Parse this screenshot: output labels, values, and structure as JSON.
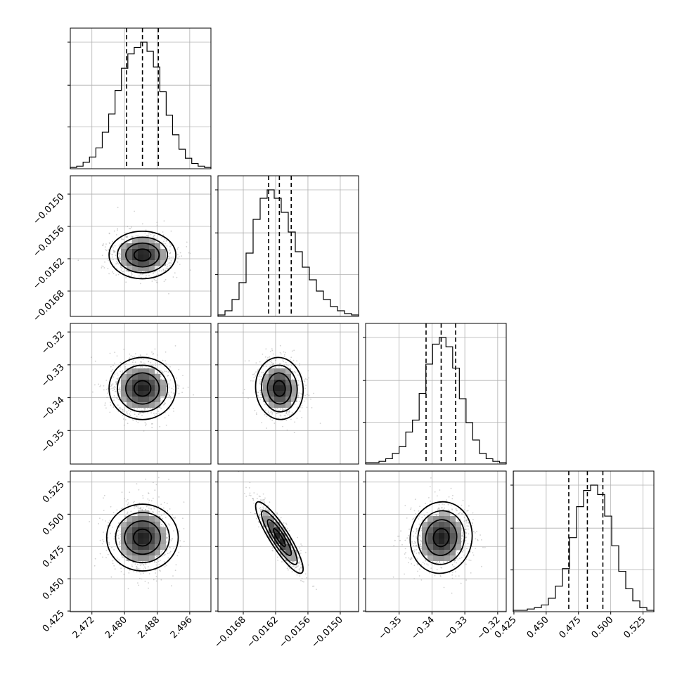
{
  "chart_data": {
    "type": "corner",
    "parameters": [
      {
        "median": 2.4844,
        "q16": 2.4805,
        "q84": 2.4883,
        "range": [
          2.4667,
          2.5012
        ],
        "ticks": [
          2.472,
          2.48,
          2.488,
          2.496
        ],
        "tick_labels": [
          "2.472",
          "2.480",
          "2.488",
          "2.496"
        ]
      },
      {
        "median": -0.01613,
        "q16": -0.01633,
        "q84": -0.01591,
        "range": [
          -0.01727,
          -0.01466
        ],
        "ticks": [
          -0.0168,
          -0.0162,
          -0.0156,
          -0.015
        ],
        "tick_labels": [
          "−0.0168",
          "−0.0162",
          "−0.0156",
          "−0.0150"
        ]
      },
      {
        "median": -0.3372,
        "q16": -0.3418,
        "q84": -0.3328,
        "range": [
          -0.3602,
          -0.3174
        ],
        "ticks": [
          -0.35,
          -0.34,
          -0.33,
          -0.32
        ],
        "tick_labels": [
          "−0.35",
          "−0.34",
          "−0.33",
          "−0.32"
        ]
      },
      {
        "median": 0.4819,
        "q16": 0.4675,
        "q84": 0.4939,
        "range": [
          0.4245,
          0.5334
        ],
        "ticks": [
          0.425,
          0.45,
          0.475,
          0.5,
          0.525
        ],
        "tick_labels": [
          "0.425",
          "0.450",
          "0.475",
          "0.500",
          "0.525"
        ]
      }
    ],
    "histograms": [
      [
        1,
        2,
        5,
        9,
        16,
        28,
        42,
        60,
        77,
        88,
        93,
        97,
        90,
        78,
        59,
        41,
        26,
        15,
        8,
        4,
        2,
        1
      ],
      [
        1,
        4,
        12,
        24,
        45,
        69,
        84,
        90,
        84,
        74,
        60,
        46,
        35,
        26,
        18,
        12,
        7,
        4,
        2,
        1
      ],
      [
        1,
        1,
        2,
        4,
        8,
        13,
        24,
        33,
        53,
        75,
        90,
        95,
        88,
        72,
        49,
        31,
        18,
        8,
        4,
        2,
        1
      ],
      [
        1,
        1,
        2,
        3,
        5,
        10,
        19,
        32,
        55,
        78,
        90,
        94,
        87,
        71,
        49,
        30,
        17,
        8,
        3,
        1
      ]
    ],
    "correlations": [
      [
        1.0,
        0.0,
        0.0,
        0.0
      ],
      [
        0.0,
        1.0,
        -0.05,
        -0.88
      ],
      [
        0.0,
        -0.05,
        1.0,
        0.05
      ],
      [
        0.0,
        -0.88,
        0.05,
        1.0
      ]
    ],
    "contour_levels_sigma": [
      0.5,
      1.0,
      1.5,
      2.0
    ],
    "quantiles": [
      0.16,
      0.5,
      0.84
    ],
    "grid": true,
    "colors": {
      "line": "#000000",
      "density": "#000000",
      "points": "#9a9a9a",
      "grid": "#b0b0b0"
    }
  }
}
